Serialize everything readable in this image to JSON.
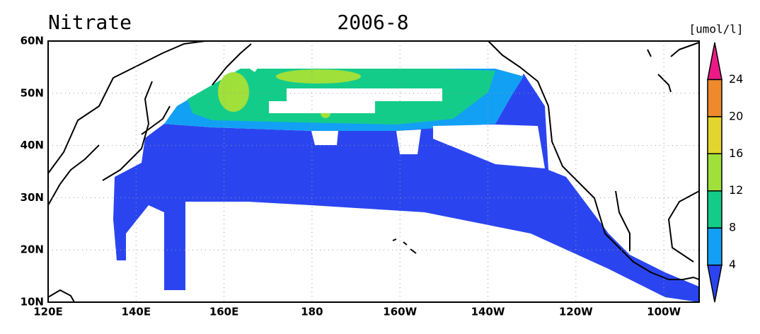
{
  "title": "Nitrate",
  "date": "2006-8",
  "units": "[umol/l]",
  "map": {
    "lat_labels": [
      "60N",
      "50N",
      "40N",
      "30N",
      "20N",
      "10N"
    ],
    "lon_labels": [
      "120E",
      "140E",
      "160E",
      "180",
      "160W",
      "140W",
      "120W",
      "100W"
    ]
  },
  "colorbar": {
    "levels": [
      4,
      8,
      12,
      16,
      20,
      24
    ],
    "colors": [
      "#2a45f0",
      "#12a0f5",
      "#14cc8a",
      "#a0e03a",
      "#e2d52e",
      "#ef8a2c",
      "#ec1a86"
    ]
  }
}
